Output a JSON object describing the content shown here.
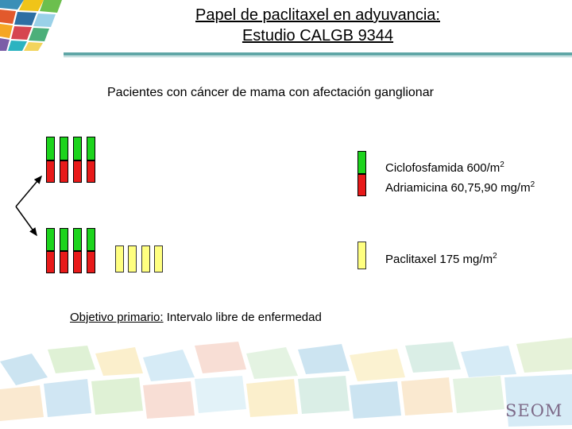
{
  "title": {
    "line1": "Papel de paclitaxel en adyuvancia:",
    "line2": "Estudio CALGB 9344"
  },
  "subtitle": "Pacientes con cáncer de mama con afectación ganglionar",
  "legend": {
    "ac_line1": "Ciclofosfamida 600/m",
    "ac_line1_sup": "2",
    "ac_line2": "Adriamicina 60,75,90 mg/m",
    "ac_line2_sup": "2",
    "paclitaxel": "Paclitaxel 175 mg/m",
    "paclitaxel_sup": "2"
  },
  "objective": {
    "label": "Objetivo primario:",
    "text": " Intervalo libre de enfermedad"
  },
  "brand": "SEOM",
  "colors": {
    "green": "#1dd41d",
    "red": "#e81a1a",
    "yellow": "#ffff80"
  }
}
